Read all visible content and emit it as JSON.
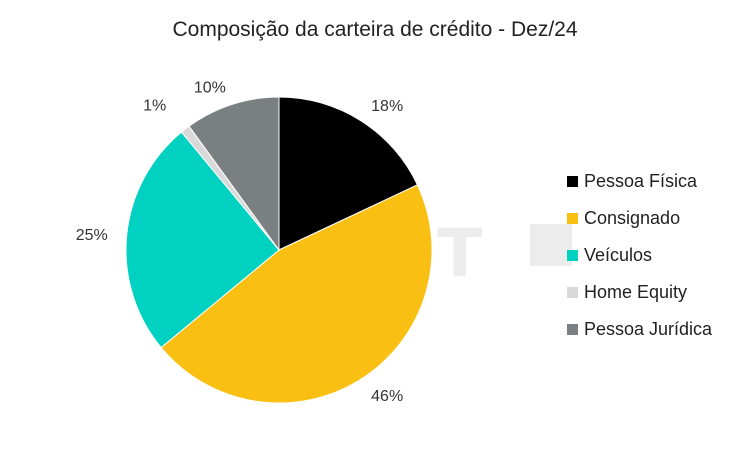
{
  "chart_data": {
    "type": "pie",
    "title": "Composição da carteira de crédito - Dez/24",
    "slices": [
      {
        "name": "Pessoa Física",
        "value": 18,
        "label": "18%",
        "color": "#000000"
      },
      {
        "name": "Consignado",
        "value": 46,
        "label": "46%",
        "color": "#F9C013"
      },
      {
        "name": "Veículos",
        "value": 25,
        "label": "25%",
        "color": "#00D1C1"
      },
      {
        "name": "Home Equity",
        "value": 1,
        "label": "1%",
        "color": "#D9D9D9"
      },
      {
        "name": "Pessoa Jurídica",
        "value": 10,
        "label": "10%",
        "color": "#7A7F82"
      }
    ],
    "legend_position": "right",
    "start_angle": "12 o'clock",
    "direction": "clockwise"
  },
  "watermark": {
    "text": "EXPERT",
    "badge": "XP"
  }
}
